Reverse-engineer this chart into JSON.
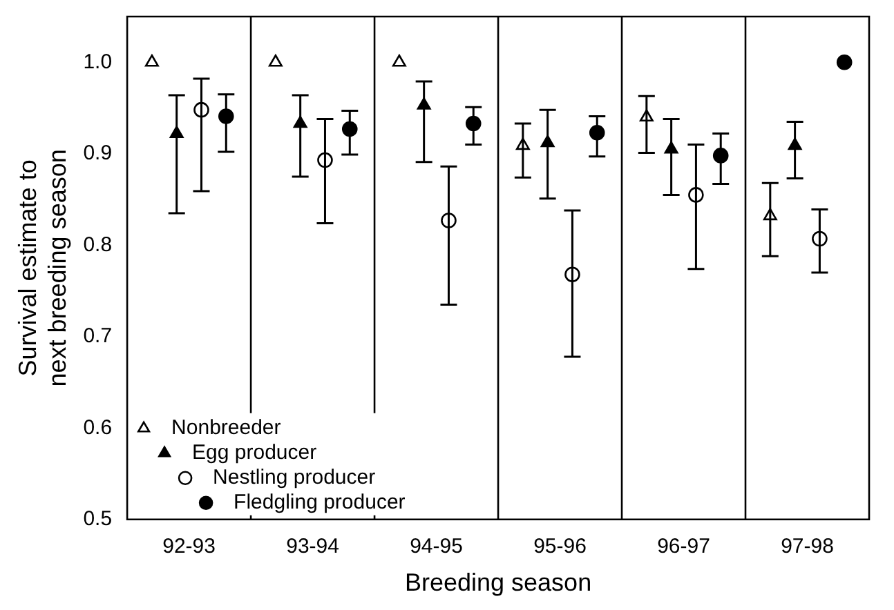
{
  "chart_data": {
    "type": "scatter",
    "xlabel": "Breeding season",
    "ylabel": "Survival estimate to next breeding season",
    "categories": [
      "92-93",
      "93-94",
      "94-95",
      "95-96",
      "96-97",
      "97-98"
    ],
    "series": [
      {
        "name": "Nonbreeder",
        "marker": "triangle",
        "color": "#ffffff",
        "values": [
          1.0,
          1.0,
          1.0,
          0.909,
          0.94,
          0.832
        ],
        "errors": [
          null,
          null,
          null,
          [
            0.874,
            0.933
          ],
          [
            0.901,
            0.963
          ],
          [
            0.788,
            0.868
          ]
        ]
      },
      {
        "name": "Egg producer",
        "marker": "triangle",
        "color": "#000000",
        "values": [
          0.922,
          0.933,
          0.953,
          0.912,
          0.905,
          0.909
        ],
        "errors": [
          [
            0.835,
            0.964
          ],
          [
            0.875,
            0.964
          ],
          [
            0.891,
            0.979
          ],
          [
            0.851,
            0.948
          ],
          [
            0.855,
            0.938
          ],
          [
            0.873,
            0.935
          ]
        ]
      },
      {
        "name": "Nestling producer",
        "marker": "circle",
        "color": "#ffffff",
        "values": [
          0.948,
          0.893,
          0.827,
          0.768,
          0.855,
          0.807
        ],
        "errors": [
          [
            0.859,
            0.982
          ],
          [
            0.824,
            0.938
          ],
          [
            0.735,
            0.886
          ],
          [
            0.678,
            0.838
          ],
          [
            0.774,
            0.91
          ],
          [
            0.77,
            0.839
          ]
        ]
      },
      {
        "name": "Fledgling producer",
        "marker": "circle",
        "color": "#000000",
        "values": [
          0.941,
          0.927,
          0.933,
          0.923,
          0.898,
          1.0
        ],
        "errors": [
          [
            0.902,
            0.965
          ],
          [
            0.899,
            0.947
          ],
          [
            0.91,
            0.951
          ],
          [
            0.897,
            0.941
          ],
          [
            0.867,
            0.922
          ],
          null
        ]
      }
    ],
    "ylim": [
      0.5,
      1.05
    ],
    "yticks": [
      0.5,
      0.6,
      0.7,
      0.8,
      0.9,
      {
        "value": 1.0,
        "label": "1.0"
      }
    ],
    "grid": "x",
    "legend": "bottom left"
  }
}
